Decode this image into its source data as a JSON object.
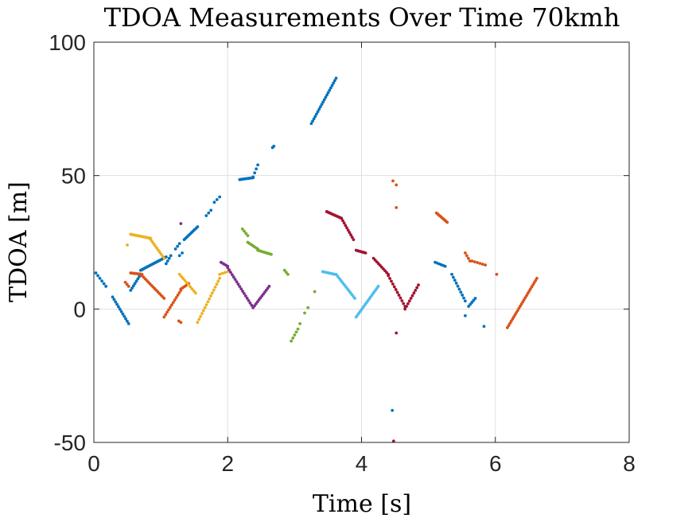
{
  "chart_data": {
    "type": "scatter",
    "title": "TDOA Measurements Over Time 70kmh",
    "xlabel": "Time [s]",
    "ylabel": "TDOA [m]",
    "xlim": [
      0,
      8
    ],
    "ylim": [
      -50,
      100
    ],
    "xticks": [
      0,
      2,
      4,
      6,
      8
    ],
    "yticks": [
      -50,
      0,
      50,
      100
    ],
    "grid": true,
    "legend": "none",
    "colors": {
      "blue": "#0072BD",
      "orange": "#D95319",
      "yellow": "#EDB120",
      "purple": "#7E2F8E",
      "green": "#77AC30",
      "cyan": "#4DBEEE",
      "darkred": "#A2142F"
    },
    "series": [
      {
        "color": "blue",
        "segments": [
          {
            "x0": 0.03,
            "y0": 13.5,
            "x1": 0.18,
            "y1": 8.5,
            "n": 6
          },
          {
            "x0": 0.28,
            "y0": 4.5,
            "x1": 0.52,
            "y1": -5.5,
            "n": 12
          },
          {
            "x0": 0.55,
            "y0": 7.0,
            "x1": 0.7,
            "y1": 13.0,
            "n": 8
          },
          {
            "x0": 0.7,
            "y0": 14.5,
            "x1": 1.08,
            "y1": 19.5,
            "n": 20
          },
          {
            "x0": 1.08,
            "y0": 17.0,
            "x1": 1.15,
            "y1": 20.0,
            "n": 4
          },
          {
            "x0": 1.22,
            "y0": 22.5,
            "x1": 1.28,
            "y1": 24.5,
            "n": 3
          },
          {
            "x0": 1.28,
            "y0": 20.0,
            "x1": 1.32,
            "y1": 21.0,
            "n": 2
          },
          {
            "x0": 1.35,
            "y0": 26.0,
            "x1": 1.55,
            "y1": 30.8,
            "n": 10
          },
          {
            "x0": 1.68,
            "y0": 35.0,
            "x1": 1.75,
            "y1": 37.0,
            "n": 3
          },
          {
            "x0": 1.8,
            "y0": 40.0,
            "x1": 1.88,
            "y1": 42.0,
            "n": 3
          },
          {
            "x0": 2.18,
            "y0": 48.5,
            "x1": 2.38,
            "y1": 49.2,
            "n": 10
          },
          {
            "x0": 2.38,
            "y0": 49.5,
            "x1": 2.45,
            "y1": 54.0,
            "n": 4
          },
          {
            "x0": 2.67,
            "y0": 60.5,
            "x1": 2.69,
            "y1": 61.0,
            "n": 2
          },
          {
            "x0": 3.25,
            "y0": 69.5,
            "x1": 3.62,
            "y1": 86.5,
            "n": 20
          },
          {
            "x0": 5.1,
            "y0": 17.5,
            "x1": 5.25,
            "y1": 16.0,
            "n": 6
          },
          {
            "x0": 5.35,
            "y0": 13.0,
            "x1": 5.55,
            "y1": 3.0,
            "n": 10
          },
          {
            "x0": 5.55,
            "y0": -2.5,
            "x1": 5.57,
            "y1": -2.5,
            "n": 1
          },
          {
            "x0": 5.6,
            "y0": 1.0,
            "x1": 5.7,
            "y1": 4.0,
            "n": 5
          },
          {
            "x0": 5.83,
            "y0": -6.5,
            "x1": 5.83,
            "y1": -6.5,
            "n": 1
          },
          {
            "x0": 4.46,
            "y0": -38.0,
            "x1": 4.46,
            "y1": -38.0,
            "n": 1
          }
        ]
      },
      {
        "color": "orange",
        "segments": [
          {
            "x0": 0.47,
            "y0": 10.0,
            "x1": 0.52,
            "y1": 8.5,
            "n": 3
          },
          {
            "x0": 0.55,
            "y0": 13.5,
            "x1": 0.72,
            "y1": 13.0,
            "n": 9
          },
          {
            "x0": 0.72,
            "y0": 12.5,
            "x1": 1.05,
            "y1": 4.0,
            "n": 15
          },
          {
            "x0": 1.05,
            "y0": -3.0,
            "x1": 1.3,
            "y1": 7.0,
            "n": 12
          },
          {
            "x0": 1.3,
            "y0": 7.5,
            "x1": 1.42,
            "y1": 9.5,
            "n": 6
          },
          {
            "x0": 1.27,
            "y0": -4.5,
            "x1": 1.3,
            "y1": -5.0,
            "n": 2
          },
          {
            "x0": 4.47,
            "y0": 48.0,
            "x1": 4.52,
            "y1": 46.5,
            "n": 2
          },
          {
            "x0": 4.52,
            "y0": 38.0,
            "x1": 4.52,
            "y1": 38.0,
            "n": 1
          },
          {
            "x0": 5.12,
            "y0": 36.0,
            "x1": 5.28,
            "y1": 32.5,
            "n": 10
          },
          {
            "x0": 5.55,
            "y0": 21.0,
            "x1": 5.62,
            "y1": 18.0,
            "n": 4
          },
          {
            "x0": 5.65,
            "y0": 18.0,
            "x1": 5.85,
            "y1": 16.5,
            "n": 6
          },
          {
            "x0": 6.02,
            "y0": 13.0,
            "x1": 6.02,
            "y1": 13.0,
            "n": 1
          },
          {
            "x0": 6.18,
            "y0": -7.0,
            "x1": 6.62,
            "y1": 11.5,
            "n": 24
          }
        ]
      },
      {
        "color": "yellow",
        "segments": [
          {
            "x0": 0.5,
            "y0": 24.0,
            "x1": 0.52,
            "y1": 24.0,
            "n": 1
          },
          {
            "x0": 0.55,
            "y0": 28.0,
            "x1": 0.85,
            "y1": 26.5,
            "n": 14
          },
          {
            "x0": 0.85,
            "y0": 26.0,
            "x1": 1.05,
            "y1": 19.0,
            "n": 10
          },
          {
            "x0": 1.28,
            "y0": 13.0,
            "x1": 1.52,
            "y1": 6.0,
            "n": 10
          },
          {
            "x0": 1.55,
            "y0": -5.0,
            "x1": 1.88,
            "y1": 11.5,
            "n": 16
          },
          {
            "x0": 1.88,
            "y0": 13.0,
            "x1": 2.0,
            "y1": 14.0,
            "n": 4
          }
        ]
      },
      {
        "color": "purple",
        "segments": [
          {
            "x0": 1.3,
            "y0": 32.0,
            "x1": 1.3,
            "y1": 32.0,
            "n": 1
          },
          {
            "x0": 1.9,
            "y0": 17.5,
            "x1": 2.0,
            "y1": 16.0,
            "n": 5
          },
          {
            "x0": 2.0,
            "y0": 15.5,
            "x1": 2.38,
            "y1": 0.5,
            "n": 18
          },
          {
            "x0": 2.38,
            "y0": 0.5,
            "x1": 2.62,
            "y1": 8.5,
            "n": 12
          }
        ]
      },
      {
        "color": "green",
        "segments": [
          {
            "x0": 2.22,
            "y0": 30.0,
            "x1": 2.3,
            "y1": 27.5,
            "n": 4
          },
          {
            "x0": 2.3,
            "y0": 25.0,
            "x1": 2.45,
            "y1": 22.5,
            "n": 7
          },
          {
            "x0": 2.45,
            "y0": 22.0,
            "x1": 2.65,
            "y1": 20.5,
            "n": 10
          },
          {
            "x0": 2.85,
            "y0": 14.5,
            "x1": 2.9,
            "y1": 13.0,
            "n": 3
          },
          {
            "x0": 2.95,
            "y0": -12.0,
            "x1": 3.05,
            "y1": -7.5,
            "n": 5
          },
          {
            "x0": 3.08,
            "y0": -5.5,
            "x1": 3.08,
            "y1": -5.5,
            "n": 1
          },
          {
            "x0": 3.15,
            "y0": -1.5,
            "x1": 3.2,
            "y1": 0.5,
            "n": 2
          },
          {
            "x0": 3.3,
            "y0": 6.5,
            "x1": 3.3,
            "y1": 6.5,
            "n": 1
          }
        ]
      },
      {
        "color": "cyan",
        "segments": [
          {
            "x0": 3.42,
            "y0": 14.0,
            "x1": 3.6,
            "y1": 13.0,
            "n": 9
          },
          {
            "x0": 3.62,
            "y0": 13.0,
            "x1": 3.9,
            "y1": 4.0,
            "n": 14
          },
          {
            "x0": 3.92,
            "y0": -3.0,
            "x1": 4.25,
            "y1": 8.5,
            "n": 18
          }
        ]
      },
      {
        "color": "darkred",
        "segments": [
          {
            "x0": 3.48,
            "y0": 36.5,
            "x1": 3.7,
            "y1": 34.0,
            "n": 12
          },
          {
            "x0": 3.7,
            "y0": 34.0,
            "x1": 3.88,
            "y1": 26.0,
            "n": 10
          },
          {
            "x0": 3.92,
            "y0": 22.0,
            "x1": 4.06,
            "y1": 21.0,
            "n": 8
          },
          {
            "x0": 4.18,
            "y0": 19.0,
            "x1": 4.4,
            "y1": 13.0,
            "n": 10
          },
          {
            "x0": 4.4,
            "y0": 12.5,
            "x1": 4.65,
            "y1": 1.0,
            "n": 12
          },
          {
            "x0": 4.65,
            "y0": 0.0,
            "x1": 4.85,
            "y1": 9.0,
            "n": 10
          },
          {
            "x0": 4.52,
            "y0": -9.0,
            "x1": 4.52,
            "y1": -9.0,
            "n": 1
          },
          {
            "x0": 4.48,
            "y0": -49.5,
            "x1": 4.48,
            "y1": -49.5,
            "n": 1
          }
        ]
      }
    ]
  }
}
